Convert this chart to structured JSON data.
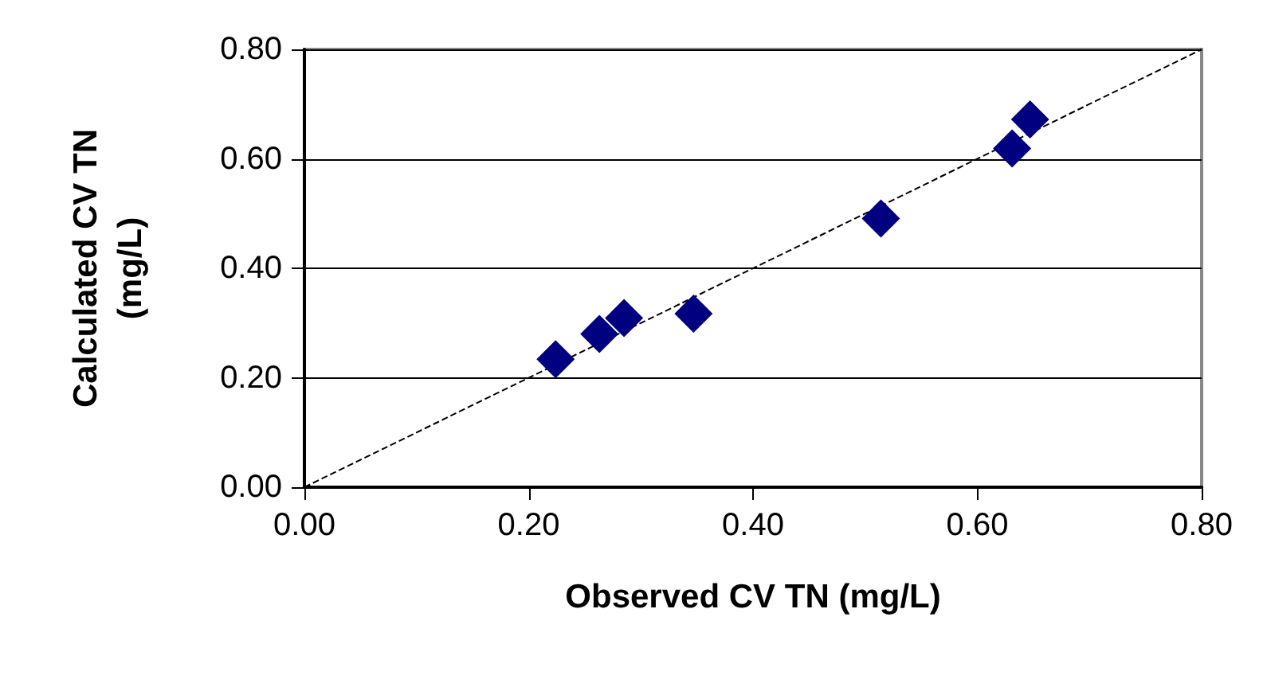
{
  "chart_data": {
    "type": "scatter",
    "xlabel": "Observed CV TN (mg/L)",
    "ylabel": "Calculated CV TN\n(mg/L)",
    "xlim": [
      0,
      0.8
    ],
    "xticks": [
      {
        "value": 0,
        "label": "0.00"
      },
      {
        "value": 0.2,
        "label": "0.20"
      },
      {
        "value": 0.4,
        "label": "0.40"
      },
      {
        "value": 0.6,
        "label": "0.60"
      },
      {
        "value": 0.8,
        "label": "0.80"
      }
    ],
    "ylim": [
      0,
      0.8
    ],
    "yticks": [
      {
        "value": 0,
        "label": "0.00"
      },
      {
        "value": 0.2,
        "label": "0.20"
      },
      {
        "value": 0.4,
        "label": "0.40"
      },
      {
        "value": 0.6,
        "label": "0.60"
      },
      {
        "value": 0.8,
        "label": "0.80"
      }
    ],
    "grid": "y",
    "marker": "diamond",
    "series": [
      {
        "color": "#000080",
        "x": [
          0.224,
          0.263,
          0.285,
          0.347,
          0.514,
          0.631,
          0.647
        ],
        "values": [
          0.234,
          0.28,
          0.309,
          0.317,
          0.491,
          0.619,
          0.672
        ]
      },
      {
        "type": "line",
        "color": "#000000",
        "line_style": "dashed",
        "marker": "none",
        "x": [
          0,
          0.8
        ],
        "values": [
          0,
          0.8
        ]
      }
    ]
  }
}
